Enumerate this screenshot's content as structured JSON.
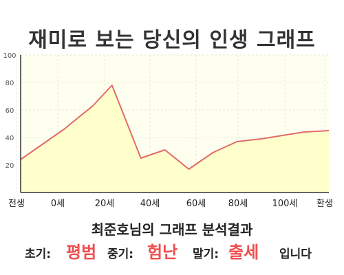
{
  "title": "재미로 보는 당신의 인생 그래프",
  "chart_data": {
    "type": "area",
    "title": "재미로 보는 당신의 인생 그래프",
    "x_tick_labels": [
      "전생",
      "0세",
      "20세",
      "40세",
      "60세",
      "80세",
      "100세",
      "환생"
    ],
    "y_ticks": [
      20,
      40,
      60,
      80,
      100
    ],
    "ylim": [
      0,
      100
    ],
    "grid": true,
    "series": [
      {
        "points": [
          {
            "x": "전생",
            "y": 24
          },
          {
            "x": "0세",
            "y": 46
          },
          {
            "x": "12세",
            "y": 63
          },
          {
            "x": "20세",
            "y": 78
          },
          {
            "x": "32세",
            "y": 25
          },
          {
            "x": "42세",
            "y": 31
          },
          {
            "x": "52세",
            "y": 17
          },
          {
            "x": "62세",
            "y": 29
          },
          {
            "x": "72세",
            "y": 37
          },
          {
            "x": "82세",
            "y": 39
          },
          {
            "x": "100세",
            "y": 44
          },
          {
            "x": "환생",
            "y": 45
          }
        ]
      }
    ],
    "colors": {
      "line": "#e26a6a",
      "fill": "#ffffcc",
      "plot_bg": "#fffff0",
      "grid": "#e8e8d8",
      "axis": "#333333"
    }
  },
  "result": {
    "title": "최준호님의 그래프 분석결과",
    "early_label": "초기:",
    "early_value": "평범",
    "mid_label": "중기:",
    "mid_value": "험난",
    "late_label": "말기:",
    "late_value": "출세",
    "suffix": "입니다",
    "highlight_color": "#ee4e4e"
  }
}
